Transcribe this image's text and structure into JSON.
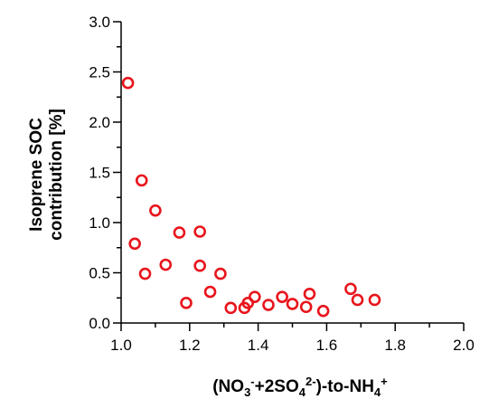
{
  "chart_data": {
    "type": "scatter",
    "xlabel": {
      "base1": "(NO",
      "sub1": "3",
      "sup1": "-",
      "base2": "+2SO",
      "sub2": "4",
      "sup2": "2-",
      "base3": ")-to-NH",
      "sub3": "4",
      "sup3": "+"
    },
    "ylabel": {
      "line1": "Isoprene SOC",
      "line2": "contribution [%]"
    },
    "xlim": [
      1.0,
      2.0
    ],
    "ylim": [
      0.0,
      3.0
    ],
    "xticks": [
      1.0,
      1.2,
      1.4,
      1.6,
      1.8,
      2.0
    ],
    "xtick_labels": [
      "1.0",
      "1.2",
      "1.4",
      "1.6",
      "1.8",
      "2.0"
    ],
    "yticks": [
      0.0,
      0.5,
      1.0,
      1.5,
      2.0,
      2.5,
      3.0
    ],
    "ytick_labels": [
      "0.0",
      "0.5",
      "1.0",
      "1.5",
      "2.0",
      "2.5",
      "3.0"
    ],
    "marker_color": "#e8141c",
    "points": [
      {
        "x": 1.02,
        "y": 2.39
      },
      {
        "x": 1.04,
        "y": 0.79
      },
      {
        "x": 1.06,
        "y": 1.42
      },
      {
        "x": 1.07,
        "y": 0.49
      },
      {
        "x": 1.1,
        "y": 1.12
      },
      {
        "x": 1.13,
        "y": 0.58
      },
      {
        "x": 1.17,
        "y": 0.9
      },
      {
        "x": 1.19,
        "y": 0.2
      },
      {
        "x": 1.23,
        "y": 0.91
      },
      {
        "x": 1.23,
        "y": 0.57
      },
      {
        "x": 1.26,
        "y": 0.31
      },
      {
        "x": 1.29,
        "y": 0.49
      },
      {
        "x": 1.32,
        "y": 0.15
      },
      {
        "x": 1.36,
        "y": 0.15
      },
      {
        "x": 1.37,
        "y": 0.2
      },
      {
        "x": 1.39,
        "y": 0.26
      },
      {
        "x": 1.43,
        "y": 0.18
      },
      {
        "x": 1.47,
        "y": 0.26
      },
      {
        "x": 1.5,
        "y": 0.19
      },
      {
        "x": 1.54,
        "y": 0.16
      },
      {
        "x": 1.55,
        "y": 0.29
      },
      {
        "x": 1.59,
        "y": 0.12
      },
      {
        "x": 1.67,
        "y": 0.34
      },
      {
        "x": 1.69,
        "y": 0.23
      },
      {
        "x": 1.74,
        "y": 0.23
      }
    ]
  }
}
